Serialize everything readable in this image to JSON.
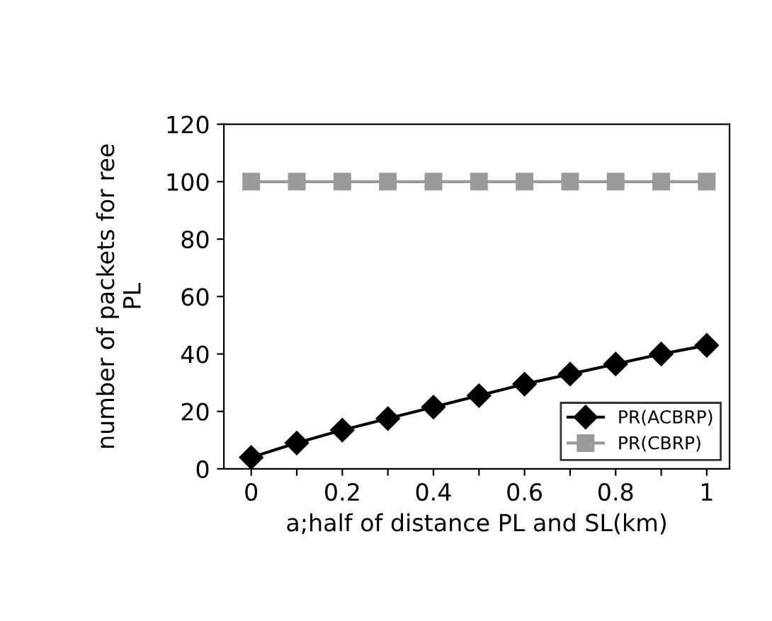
{
  "chart_data": {
    "type": "line",
    "xlabel": "a;half of distance PL and SL(km)",
    "ylabel": "number of packets for ree\nPL",
    "x": [
      0,
      0.1,
      0.2,
      0.3,
      0.4,
      0.5,
      0.6,
      0.7,
      0.8,
      0.9,
      1
    ],
    "series": [
      {
        "name": "PR(ACBRP)",
        "color": "#000000",
        "marker": "diamond",
        "values": [
          4,
          9,
          13.5,
          17.5,
          21.5,
          25.5,
          29.5,
          33,
          36.5,
          40,
          43
        ]
      },
      {
        "name": "PR(CBRP)",
        "color": "#9a9a9a",
        "marker": "square",
        "values": [
          100,
          100,
          100,
          100,
          100,
          100,
          100,
          100,
          100,
          100,
          100
        ]
      }
    ],
    "xlim": [
      -0.06,
      1.05
    ],
    "ylim": [
      0,
      120
    ],
    "xticks": [
      0,
      {
        "value": 0.1,
        "label": null
      },
      0.2,
      {
        "value": 0.3,
        "label": null
      },
      0.4,
      {
        "value": 0.5,
        "label": null
      },
      0.6,
      {
        "value": 0.7,
        "label": null
      },
      0.8,
      {
        "value": 0.9,
        "label": null
      },
      1
    ],
    "yticks": [
      0,
      20,
      40,
      60,
      80,
      100,
      120
    ],
    "grid": false,
    "legend": "bottom right",
    "line_style": "solid"
  }
}
